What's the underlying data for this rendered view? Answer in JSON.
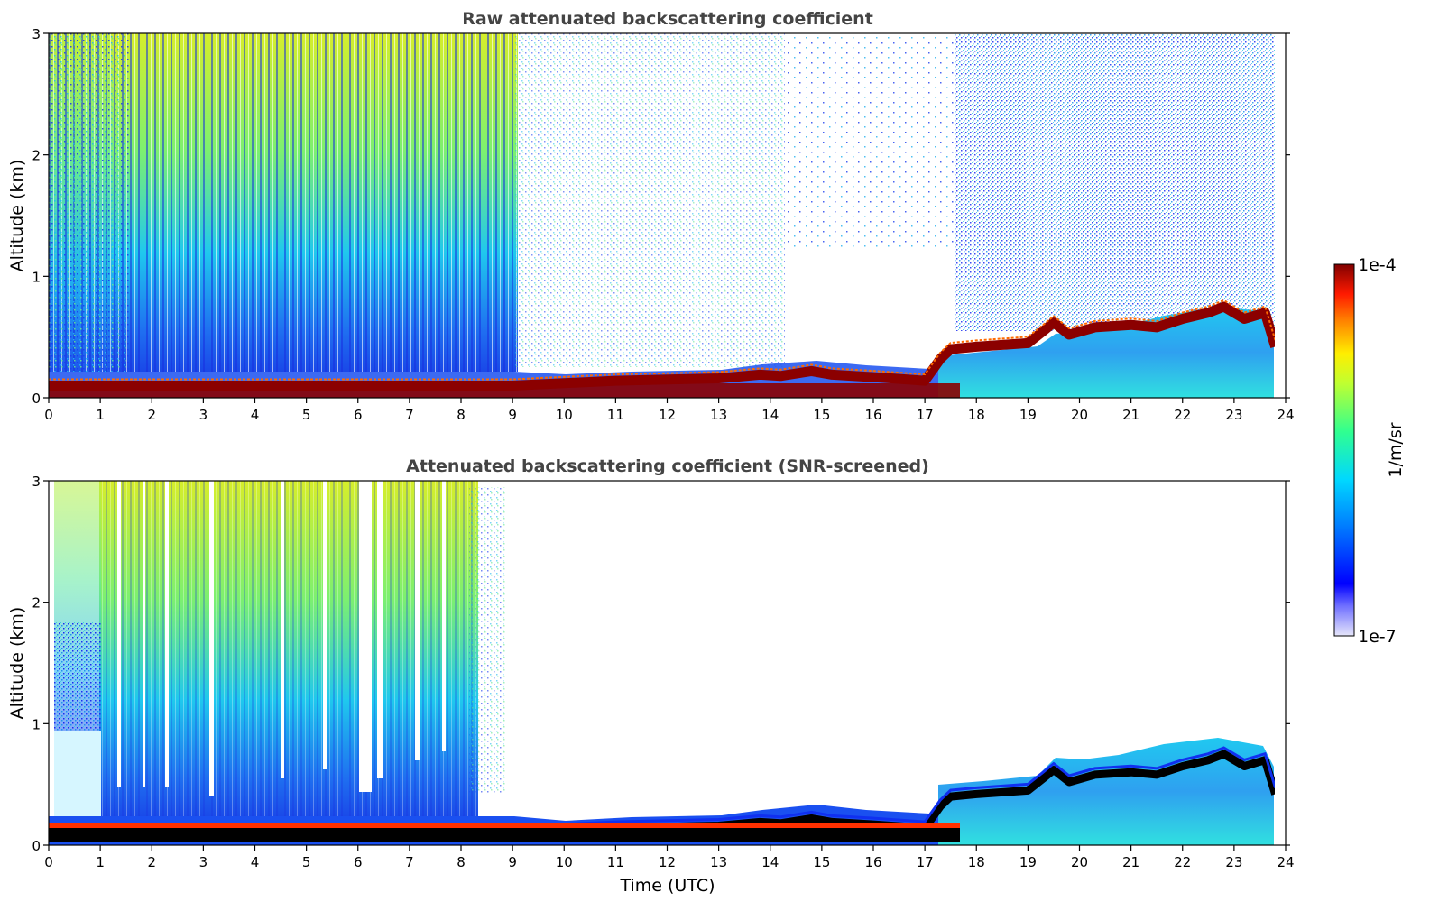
{
  "colorbar": {
    "label": "1/m/sr",
    "max_label": "1e-4",
    "min_label": "1e-7",
    "scale": "log",
    "range": [
      1e-07,
      0.0001
    ]
  },
  "chart_data": [
    {
      "type": "heatmap",
      "title": "Raw attenuated backscattering coefficient",
      "xlabel": "",
      "ylabel": "Altitude (km)",
      "xlim": [
        0,
        24
      ],
      "ylim": [
        0,
        3
      ],
      "x_ticks": [
        "0",
        "1",
        "2",
        "3",
        "4",
        "5",
        "6",
        "7",
        "8",
        "9",
        "10",
        "11",
        "12",
        "13",
        "14",
        "15",
        "16",
        "17",
        "18",
        "19",
        "20",
        "21",
        "22",
        "23",
        "24"
      ],
      "y_ticks": [
        "0",
        "1",
        "2",
        "3"
      ],
      "screened": false
    },
    {
      "type": "heatmap",
      "title": "Attenuated backscattering coefficient (SNR-screened)",
      "xlabel": "Time (UTC)",
      "ylabel": "Altitude (km)",
      "xlim": [
        0,
        24
      ],
      "ylim": [
        0,
        3
      ],
      "x_ticks": [
        "0",
        "1",
        "2",
        "3",
        "4",
        "5",
        "6",
        "7",
        "8",
        "9",
        "10",
        "11",
        "12",
        "13",
        "14",
        "15",
        "16",
        "17",
        "18",
        "19",
        "20",
        "21",
        "22",
        "23",
        "24"
      ],
      "y_ticks": [
        "0",
        "1",
        "2",
        "3"
      ],
      "screened": true
    }
  ],
  "boundary_layer_top_km": {
    "time_utc": [
      0,
      2,
      4,
      6,
      8,
      9,
      10,
      11,
      12,
      13,
      13.8,
      14.2,
      14.8,
      15.2,
      16,
      17,
      17.3,
      17.5,
      18,
      19,
      19.3,
      19.5,
      19.8,
      20.3,
      21,
      21.5,
      22,
      22.5,
      22.8,
      23.2,
      23.6,
      23.8
    ],
    "altitude_km": [
      0.1,
      0.1,
      0.1,
      0.1,
      0.1,
      0.1,
      0.12,
      0.14,
      0.15,
      0.16,
      0.19,
      0.18,
      0.22,
      0.19,
      0.17,
      0.14,
      0.32,
      0.4,
      0.42,
      0.45,
      0.55,
      0.62,
      0.52,
      0.58,
      0.6,
      0.58,
      0.65,
      0.7,
      0.75,
      0.65,
      0.7,
      0.42
    ]
  },
  "colors": {
    "background": "#ffffff",
    "title": "#444444"
  }
}
